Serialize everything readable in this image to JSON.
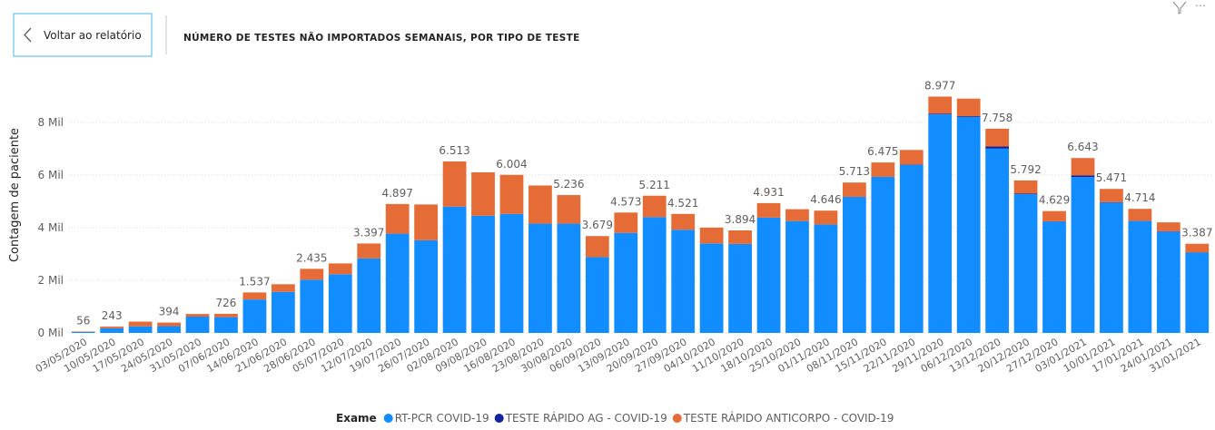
{
  "header": {
    "back_button": "Voltar ao relatório"
  },
  "chart_data": {
    "type": "stacked_bar",
    "title": "NÚMERO DE TESTES NÃO IMPORTADOS SEMANAIS, POR TIPO DE TESTE",
    "y_label": "Contagem de paciente",
    "legend_title": "Exame",
    "categories": [
      "03/05/2020",
      "10/05/2020",
      "17/05/2020",
      "24/05/2020",
      "31/05/2020",
      "07/06/2020",
      "14/06/2020",
      "21/06/2020",
      "28/06/2020",
      "05/07/2020",
      "12/07/2020",
      "19/07/2020",
      "26/07/2020",
      "02/08/2020",
      "09/08/2020",
      "16/08/2020",
      "23/08/2020",
      "30/08/2020",
      "06/09/2020",
      "13/09/2020",
      "20/09/2020",
      "27/09/2020",
      "04/10/2020",
      "11/10/2020",
      "18/10/2020",
      "25/10/2020",
      "01/11/2020",
      "08/11/2020",
      "15/11/2020",
      "22/11/2020",
      "29/11/2020",
      "06/12/2020",
      "13/12/2020",
      "20/12/2020",
      "27/12/2020",
      "03/01/2021",
      "10/01/2021",
      "17/01/2021",
      "24/01/2021",
      "31/01/2021"
    ],
    "series": [
      {
        "name": "RT-PCR COVID-19",
        "color": "#118dff",
        "values": [
          40,
          180,
          250,
          260,
          620,
          600,
          1270,
          1560,
          2020,
          2230,
          2830,
          3770,
          3520,
          4800,
          4450,
          4520,
          4150,
          4150,
          2880,
          3800,
          4400,
          3920,
          3400,
          3380,
          4380,
          4250,
          4120,
          5170,
          5930,
          6380,
          8300,
          8200,
          7000,
          5270,
          4230,
          5920,
          4950,
          4250,
          3850,
          3050
        ]
      },
      {
        "name": "TESTE RÁPIDO AG - COVID-19",
        "color": "#12239e",
        "values": [
          0,
          0,
          0,
          0,
          0,
          0,
          0,
          0,
          0,
          0,
          0,
          0,
          0,
          0,
          0,
          0,
          0,
          0,
          0,
          0,
          0,
          0,
          0,
          0,
          0,
          0,
          0,
          0,
          0,
          20,
          30,
          30,
          80,
          20,
          10,
          60,
          20,
          10,
          10,
          10
        ]
      },
      {
        "name": "TESTE RÁPIDO ANTICORPO - COVID-19",
        "color": "#e66c37",
        "values": [
          16,
          63,
          180,
          134,
          100,
          126,
          267,
          290,
          415,
          410,
          567,
          1127,
          1360,
          1713,
          1650,
          1484,
          1450,
          1086,
          799,
          773,
          811,
          601,
          600,
          514,
          551,
          450,
          526,
          543,
          545,
          550,
          647,
          670,
          678,
          502,
          389,
          663,
          501,
          454,
          340,
          327
        ]
      }
    ],
    "totals": {
      "values": [
        56,
        243,
        null,
        394,
        null,
        726,
        1537,
        null,
        2435,
        null,
        3397,
        4897,
        null,
        6513,
        null,
        6004,
        null,
        5236,
        3679,
        4573,
        5211,
        4521,
        null,
        3894,
        4931,
        null,
        4646,
        5713,
        6475,
        null,
        8977,
        null,
        7758,
        5792,
        4629,
        6643,
        5471,
        4714,
        null,
        3387
      ],
      "value_labels": [
        "56",
        "243",
        null,
        "394",
        null,
        "726",
        "1.537",
        null,
        "2.435",
        null,
        "3.397",
        "4.897",
        null,
        "6.513",
        null,
        "6.004",
        null,
        "5.236",
        "3.679",
        "4.573",
        "5.211",
        "4.521",
        null,
        "3.894",
        "4.931",
        null,
        "4.646",
        "5.713",
        "6.475",
        null,
        "8.977",
        null,
        "7.758",
        "5.792",
        "4.629",
        "6.643",
        "5.471",
        "4.714",
        null,
        "3.387"
      ]
    },
    "ylim": [
      0,
      9200
    ],
    "yticks": [
      {
        "value": 0,
        "label": "0 Mil"
      },
      {
        "value": 2000,
        "label": "2 Mil"
      },
      {
        "value": 4000,
        "label": "4 Mil"
      },
      {
        "value": 6000,
        "label": "6 Mil"
      },
      {
        "value": 8000,
        "label": "8 Mil"
      }
    ],
    "grid": true
  }
}
